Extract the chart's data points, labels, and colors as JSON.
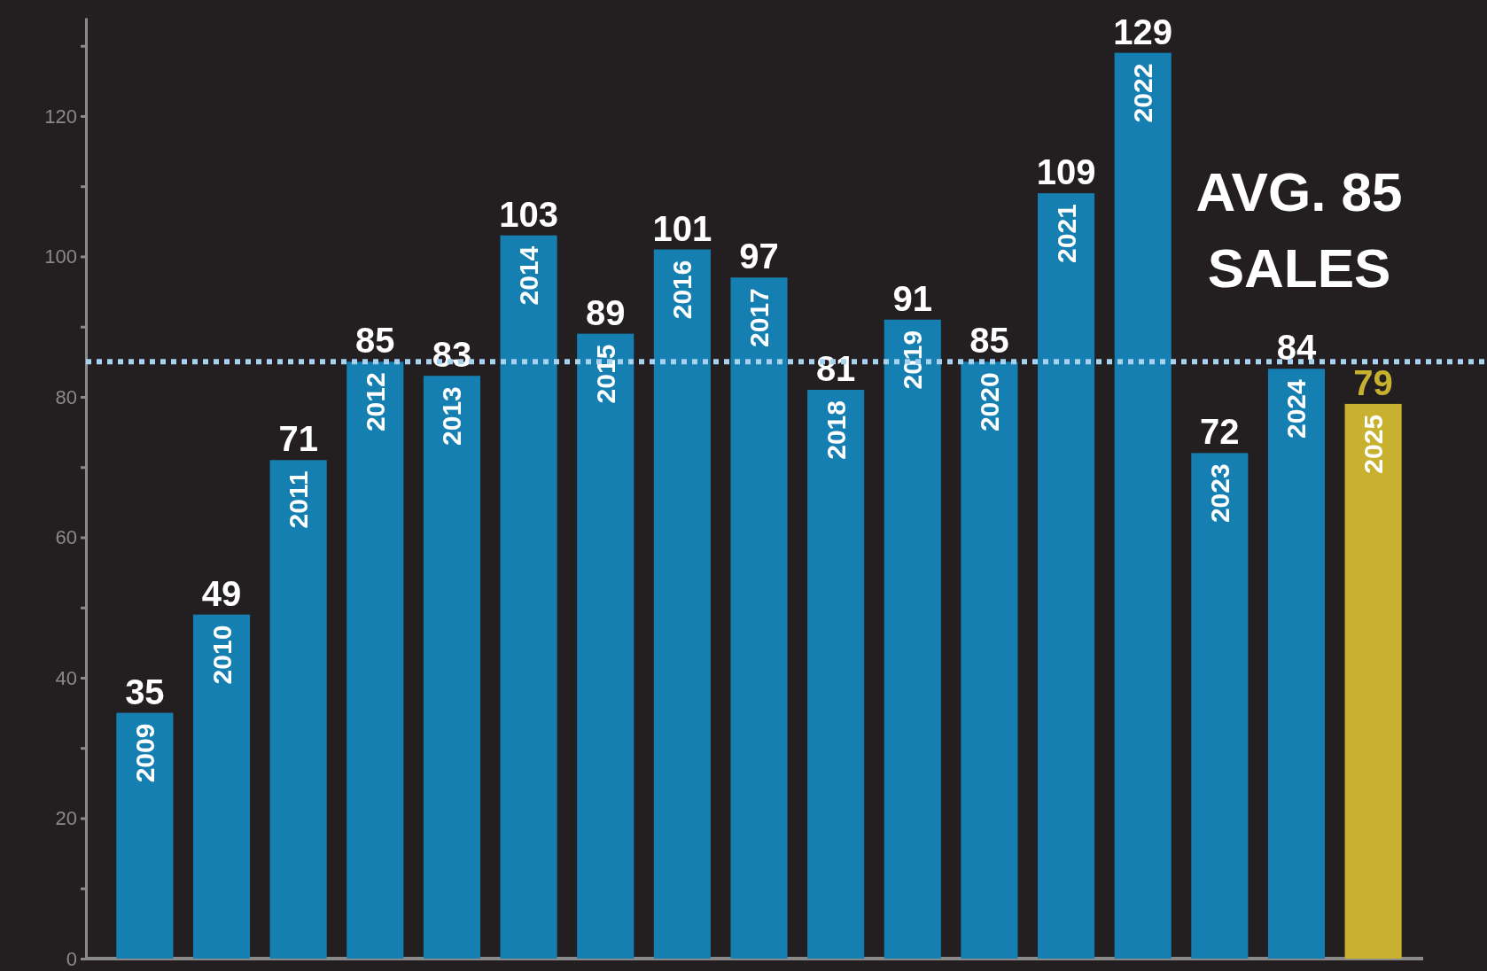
{
  "chart_data": {
    "type": "bar",
    "categories": [
      "2009",
      "2010",
      "2011",
      "2012",
      "2013",
      "2014",
      "2015",
      "2016",
      "2017",
      "2018",
      "2019",
      "2020",
      "2021",
      "2022",
      "2023",
      "2024",
      "2025"
    ],
    "values": [
      35,
      49,
      71,
      85,
      83,
      103,
      89,
      101,
      97,
      81,
      91,
      85,
      109,
      129,
      72,
      84,
      79
    ],
    "colors": [
      "#157fb1",
      "#157fb1",
      "#157fb1",
      "#157fb1",
      "#157fb1",
      "#157fb1",
      "#157fb1",
      "#157fb1",
      "#157fb1",
      "#157fb1",
      "#157fb1",
      "#157fb1",
      "#157fb1",
      "#157fb1",
      "#157fb1",
      "#157fb1",
      "#c8b12e"
    ],
    "ylim": [
      0,
      134
    ],
    "yticks": [
      0,
      {
        "value": 10,
        "label": null
      },
      20,
      {
        "value": 30,
        "label": null
      },
      40,
      {
        "value": 50,
        "label": null
      },
      60,
      {
        "value": 70,
        "label": null
      },
      80,
      {
        "value": 90,
        "label": null
      },
      100,
      {
        "value": 110,
        "label": null
      },
      120,
      {
        "value": 130,
        "label": null
      }
    ],
    "data_labels": true,
    "grid": false,
    "ref_lines": [
      {
        "axis": "y",
        "value": 85,
        "label": "AVG. 85 SALES",
        "color": "#a9d2ef",
        "line_style": "dotted"
      }
    ]
  }
}
